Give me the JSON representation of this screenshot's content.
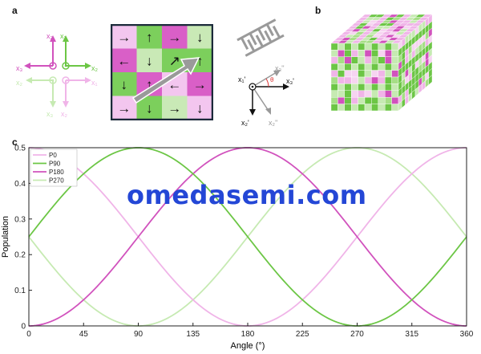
{
  "panel_labels": {
    "a": "a",
    "b": "b",
    "c": "c"
  },
  "panel_a": {
    "axes_set": {
      "x1": "x₁",
      "x2": "x₂",
      "x3": "x₃"
    },
    "grid": [
      [
        "→",
        "↑",
        "→",
        "↓"
      ],
      [
        "←",
        "↓",
        "↗",
        "↑"
      ],
      [
        "↓",
        "↑",
        "←",
        "→"
      ],
      [
        "→",
        "↓",
        "→",
        "↓"
      ]
    ],
    "grid_colors": [
      [
        "#f3c6ef",
        "#7ccf5c",
        "#d95fc7",
        "#c9e9b6"
      ],
      [
        "#d95fc7",
        "#c9e9b6",
        "#7ccf5c",
        "#7ccf5c"
      ],
      [
        "#7ccf5c",
        "#d95fc7",
        "#f3c6ef",
        "#d95fc7"
      ],
      [
        "#f3c6ef",
        "#7ccf5c",
        "#c9e9b6",
        "#f3c6ef"
      ]
    ],
    "rotated_axes": {
      "x1p": "x₁'",
      "x2p": "x₂'",
      "x3p": "x₃'",
      "x2pp": "x₂''",
      "x3pp": "x₃''",
      "theta": "θ"
    }
  },
  "watermark": "omedasemi.com",
  "colors": {
    "P0": "#f0b4e8",
    "P90": "#6cc645",
    "P180": "#d152bd",
    "P270": "#c6eab2"
  },
  "chart_data": {
    "type": "line",
    "xlabel": "Angle (°)",
    "ylabel": "Population",
    "xlim": [
      0,
      360
    ],
    "ylim": [
      0,
      0.5
    ],
    "xticks": [
      0,
      45,
      90,
      135,
      180,
      225,
      270,
      315,
      360
    ],
    "yticks": [
      0,
      0.1,
      0.2,
      0.3,
      0.4,
      0.5
    ],
    "ytick_labels": [
      "0",
      "0.1",
      "0.2",
      "0.3",
      "0.4",
      "0.5"
    ],
    "legend_position": "top-left",
    "series": [
      {
        "name": "P0",
        "formula": "0.25*(1+cos(x))"
      },
      {
        "name": "P90",
        "formula": "0.25*(1+sin(x))"
      },
      {
        "name": "P180",
        "formula": "0.25*(1-cos(x))"
      },
      {
        "name": "P270",
        "formula": "0.25*(1-sin(x))"
      }
    ],
    "sample_points": {
      "x": [
        0,
        45,
        90,
        135,
        180,
        225,
        270,
        315,
        360
      ],
      "P0": [
        0.5,
        0.427,
        0.25,
        0.073,
        0,
        0.073,
        0.25,
        0.427,
        0.5
      ],
      "P90": [
        0.25,
        0.427,
        0.5,
        0.427,
        0.25,
        0.073,
        0,
        0.073,
        0.25
      ],
      "P180": [
        0,
        0.073,
        0.25,
        0.427,
        0.5,
        0.427,
        0.25,
        0.073,
        0
      ],
      "P270": [
        0.25,
        0.073,
        0,
        0.073,
        0.25,
        0.427,
        0.5,
        0.427,
        0.25
      ]
    }
  }
}
